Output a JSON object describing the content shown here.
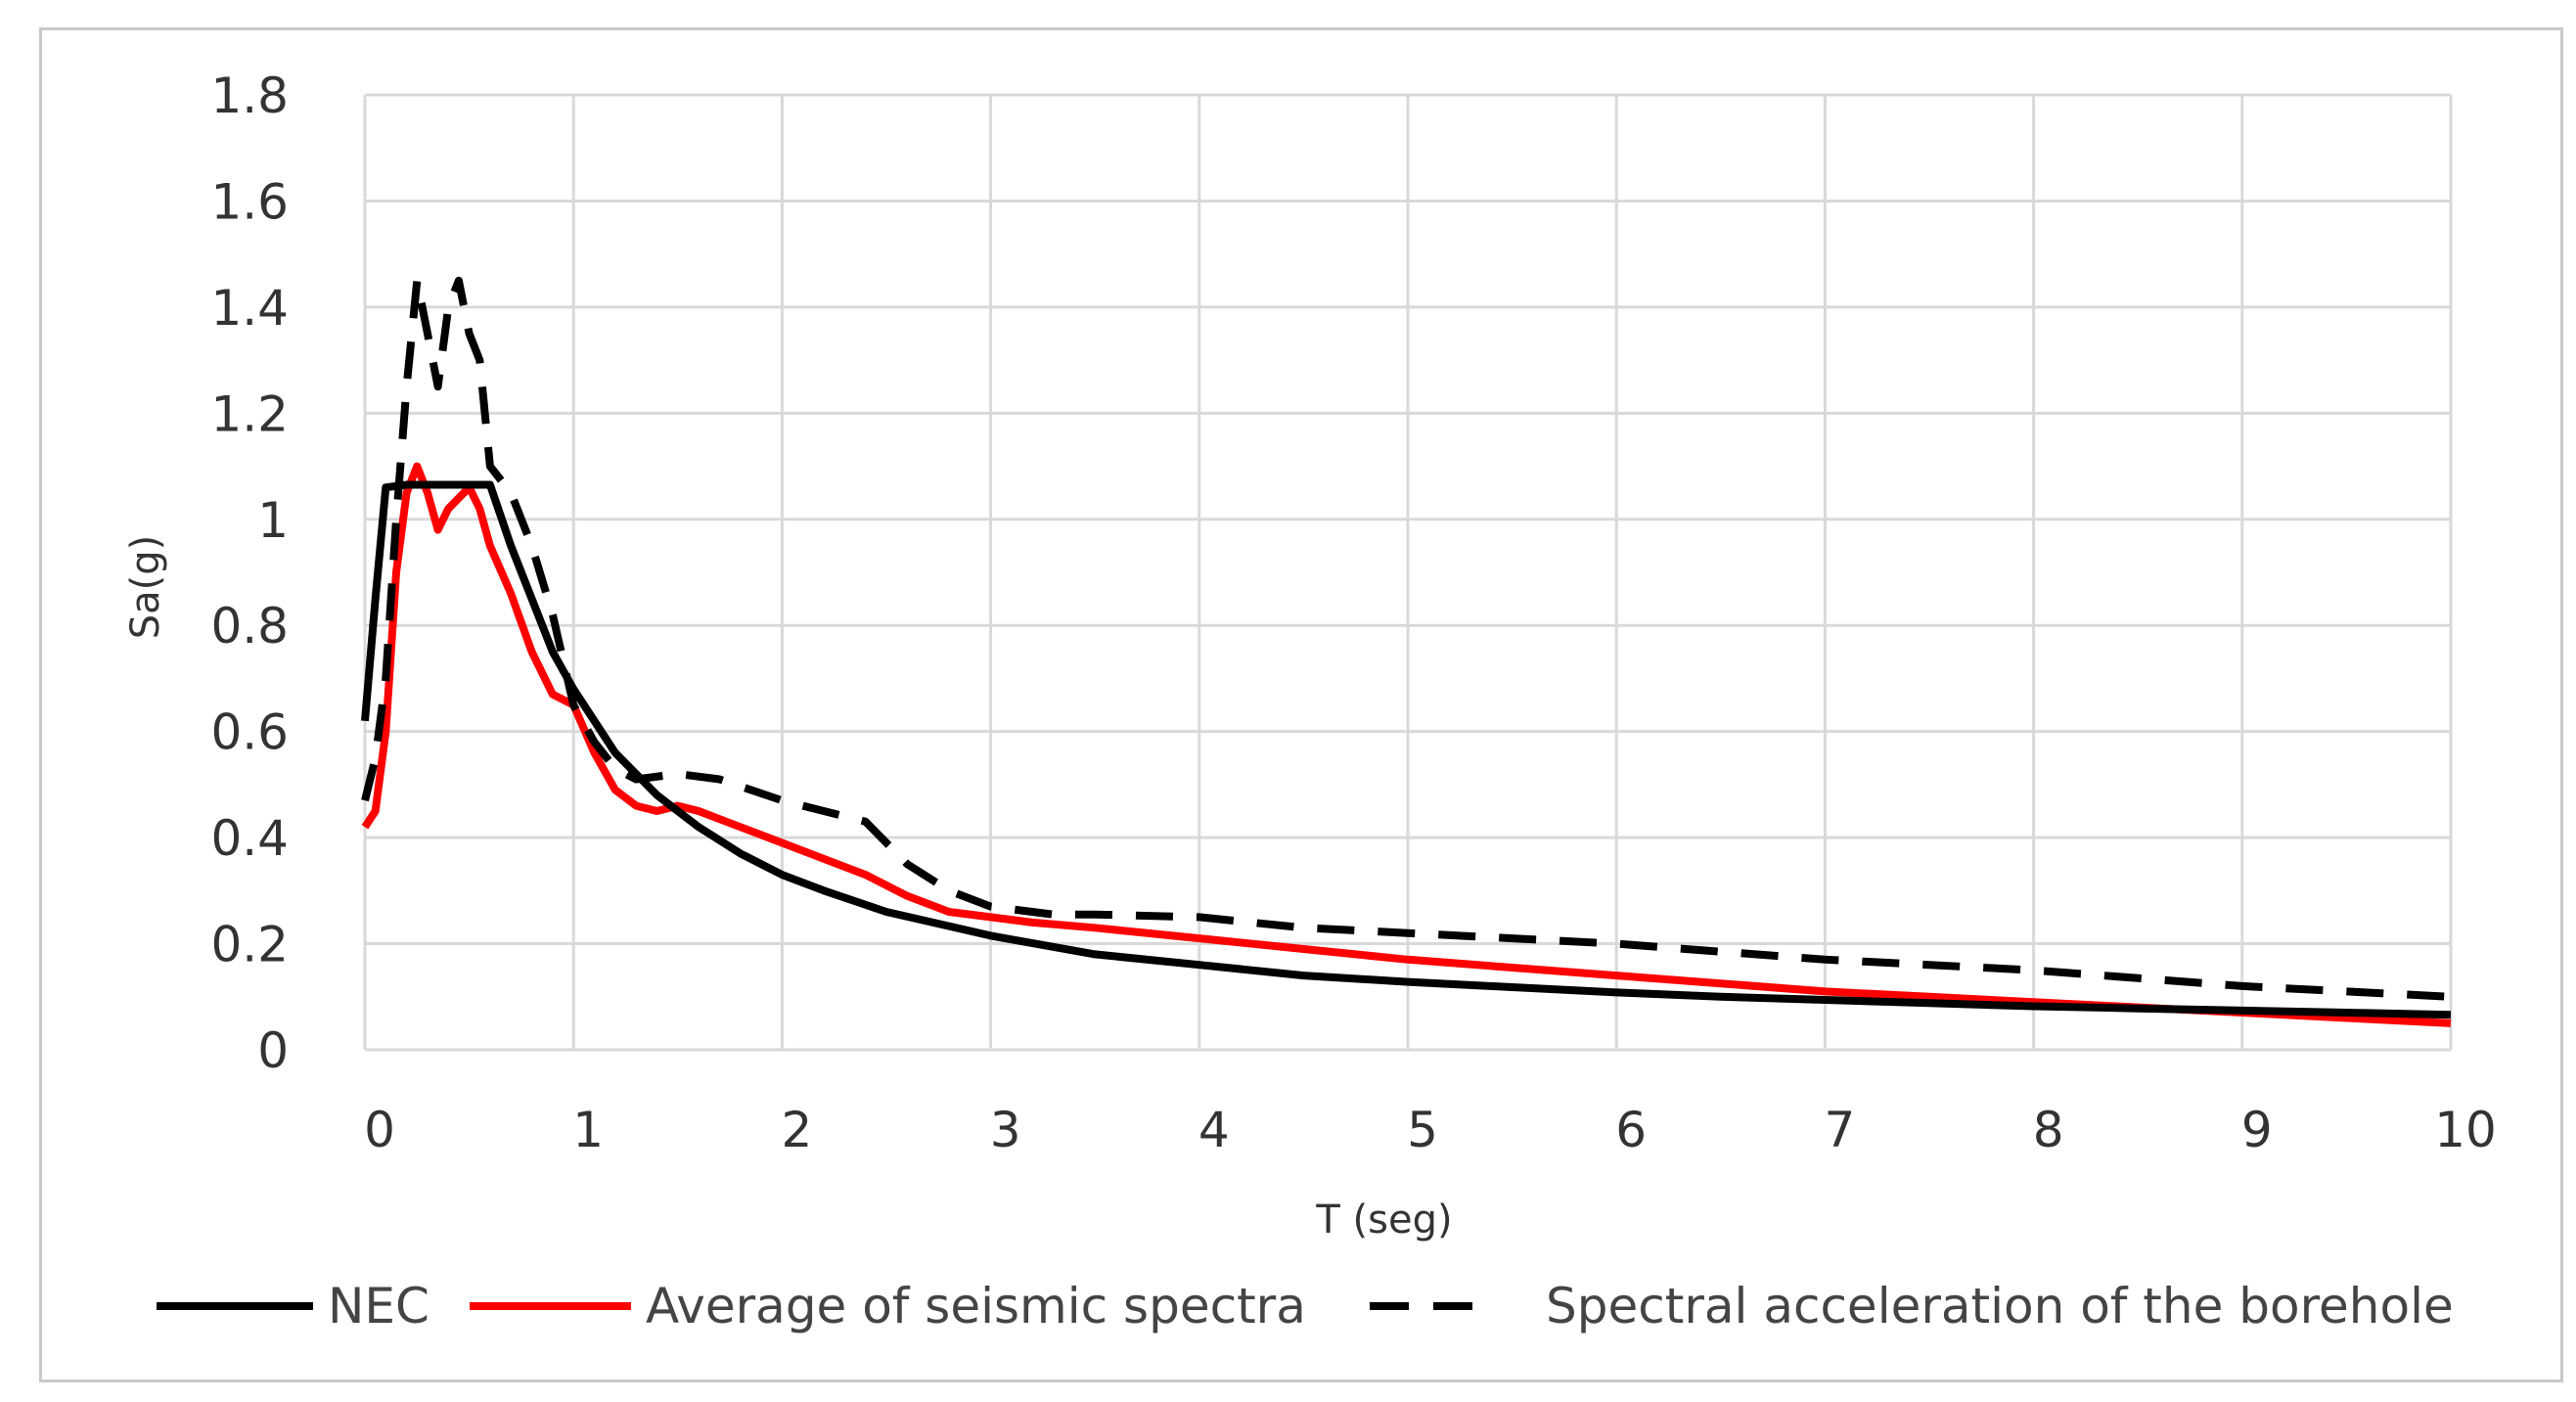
{
  "chart_data": {
    "type": "line",
    "title": "",
    "xlabel": "T (seg)",
    "ylabel": "Sa(g)",
    "xlim": [
      0,
      10
    ],
    "ylim": [
      0,
      1.8
    ],
    "x_ticks": [
      "0",
      "1",
      "2",
      "3",
      "4",
      "5",
      "6",
      "7",
      "8",
      "9",
      "10"
    ],
    "y_ticks": [
      "0",
      "0.2",
      "0.4",
      "0.6",
      "0.8",
      "1",
      "1.2",
      "1.4",
      "1.6",
      "1.8"
    ],
    "grid": true,
    "legend_position": "bottom",
    "series": [
      {
        "name": "NEC",
        "color": "#000000",
        "style": "solid",
        "points": [
          [
            0,
            0.62
          ],
          [
            0.05,
            0.85
          ],
          [
            0.1,
            1.06
          ],
          [
            0.2,
            1.065
          ],
          [
            0.4,
            1.065
          ],
          [
            0.6,
            1.065
          ],
          [
            0.7,
            0.95
          ],
          [
            0.8,
            0.85
          ],
          [
            0.9,
            0.75
          ],
          [
            1.0,
            0.68
          ],
          [
            1.2,
            0.56
          ],
          [
            1.4,
            0.48
          ],
          [
            1.6,
            0.42
          ],
          [
            1.8,
            0.37
          ],
          [
            2.0,
            0.33
          ],
          [
            2.2,
            0.3
          ],
          [
            2.5,
            0.26
          ],
          [
            3.0,
            0.215
          ],
          [
            3.5,
            0.18
          ],
          [
            4.0,
            0.16
          ],
          [
            4.5,
            0.14
          ],
          [
            5.0,
            0.128
          ],
          [
            5.5,
            0.118
          ],
          [
            6.0,
            0.108
          ],
          [
            6.5,
            0.1
          ],
          [
            7.0,
            0.094
          ],
          [
            7.5,
            0.088
          ],
          [
            8.0,
            0.082
          ],
          [
            8.5,
            0.078
          ],
          [
            9.0,
            0.074
          ],
          [
            9.5,
            0.07
          ],
          [
            10.0,
            0.066
          ]
        ]
      },
      {
        "name": "Average of seismic spectra",
        "color": "#ff0000",
        "style": "solid",
        "points": [
          [
            0,
            0.42
          ],
          [
            0.05,
            0.45
          ],
          [
            0.1,
            0.6
          ],
          [
            0.15,
            0.9
          ],
          [
            0.2,
            1.05
          ],
          [
            0.25,
            1.1
          ],
          [
            0.3,
            1.05
          ],
          [
            0.35,
            0.98
          ],
          [
            0.4,
            1.02
          ],
          [
            0.45,
            1.04
          ],
          [
            0.5,
            1.06
          ],
          [
            0.55,
            1.02
          ],
          [
            0.6,
            0.95
          ],
          [
            0.7,
            0.86
          ],
          [
            0.8,
            0.75
          ],
          [
            0.9,
            0.67
          ],
          [
            1.0,
            0.65
          ],
          [
            1.1,
            0.56
          ],
          [
            1.2,
            0.49
          ],
          [
            1.3,
            0.46
          ],
          [
            1.4,
            0.45
          ],
          [
            1.5,
            0.46
          ],
          [
            1.6,
            0.45
          ],
          [
            1.8,
            0.42
          ],
          [
            2.0,
            0.39
          ],
          [
            2.2,
            0.36
          ],
          [
            2.4,
            0.33
          ],
          [
            2.6,
            0.29
          ],
          [
            2.8,
            0.26
          ],
          [
            3.0,
            0.25
          ],
          [
            3.2,
            0.24
          ],
          [
            3.5,
            0.23
          ],
          [
            4.0,
            0.21
          ],
          [
            4.5,
            0.19
          ],
          [
            5.0,
            0.17
          ],
          [
            5.5,
            0.155
          ],
          [
            6.0,
            0.14
          ],
          [
            6.5,
            0.125
          ],
          [
            7.0,
            0.11
          ],
          [
            7.5,
            0.1
          ],
          [
            8.0,
            0.09
          ],
          [
            8.5,
            0.08
          ],
          [
            9.0,
            0.07
          ],
          [
            9.5,
            0.06
          ],
          [
            10.0,
            0.05
          ]
        ]
      },
      {
        "name": "Spectral acceleration of the borehole",
        "color": "#000000",
        "style": "dashed",
        "points": [
          [
            0,
            0.47
          ],
          [
            0.05,
            0.55
          ],
          [
            0.1,
            0.7
          ],
          [
            0.15,
            1.0
          ],
          [
            0.2,
            1.25
          ],
          [
            0.25,
            1.45
          ],
          [
            0.3,
            1.35
          ],
          [
            0.35,
            1.25
          ],
          [
            0.4,
            1.4
          ],
          [
            0.45,
            1.45
          ],
          [
            0.5,
            1.35
          ],
          [
            0.55,
            1.3
          ],
          [
            0.6,
            1.1
          ],
          [
            0.7,
            1.05
          ],
          [
            0.8,
            0.95
          ],
          [
            0.9,
            0.82
          ],
          [
            1.0,
            0.65
          ],
          [
            1.1,
            0.58
          ],
          [
            1.2,
            0.53
          ],
          [
            1.3,
            0.51
          ],
          [
            1.5,
            0.52
          ],
          [
            1.7,
            0.51
          ],
          [
            2.0,
            0.47
          ],
          [
            2.2,
            0.45
          ],
          [
            2.4,
            0.43
          ],
          [
            2.6,
            0.35
          ],
          [
            2.8,
            0.3
          ],
          [
            3.0,
            0.27
          ],
          [
            3.3,
            0.255
          ],
          [
            3.5,
            0.255
          ],
          [
            4.0,
            0.25
          ],
          [
            4.5,
            0.23
          ],
          [
            5.0,
            0.22
          ],
          [
            5.5,
            0.21
          ],
          [
            6.0,
            0.2
          ],
          [
            6.5,
            0.185
          ],
          [
            7.0,
            0.17
          ],
          [
            7.5,
            0.16
          ],
          [
            8.0,
            0.15
          ],
          [
            8.5,
            0.135
          ],
          [
            9.0,
            0.12
          ],
          [
            9.5,
            0.11
          ],
          [
            10.0,
            0.1
          ]
        ]
      }
    ]
  }
}
